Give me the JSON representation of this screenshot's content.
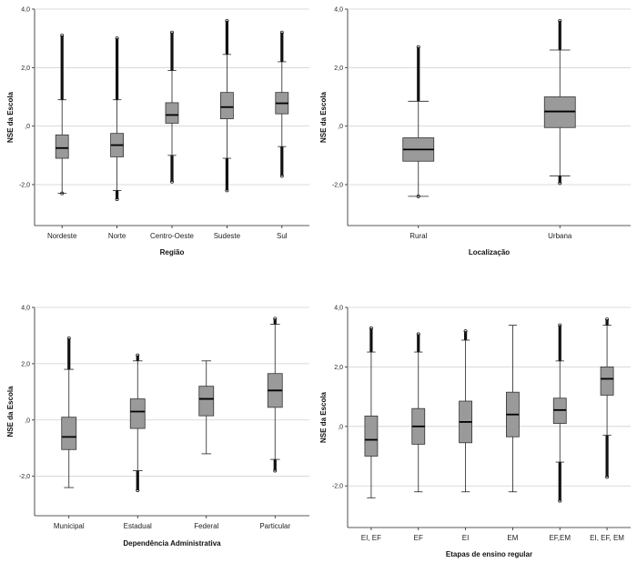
{
  "chart_data": [
    {
      "type": "boxplot",
      "xlabel": "Região",
      "ylabel": "NSE da Escola",
      "ylim": [
        -3.4,
        4.0
      ],
      "yticks": [
        -2.0,
        0.0,
        2.0,
        4.0
      ],
      "ytick_labels": [
        "-2,0",
        ",0",
        "2,0",
        "4,0"
      ],
      "grid": true,
      "categories": [
        "Nordeste",
        "Norte",
        "Centro-Oeste",
        "Sudeste",
        "Sul"
      ],
      "boxes": [
        {
          "min": -2.3,
          "q1": -1.1,
          "median": -0.75,
          "q3": -0.3,
          "max": 0.9
        },
        {
          "min": -2.2,
          "q1": -1.05,
          "median": -0.65,
          "q3": -0.25,
          "max": 0.9
        },
        {
          "min": -1.0,
          "q1": 0.1,
          "median": 0.38,
          "q3": 0.8,
          "max": 1.9
        },
        {
          "min": -1.1,
          "q1": 0.25,
          "median": 0.65,
          "q3": 1.15,
          "max": 2.45
        },
        {
          "min": -0.7,
          "q1": 0.42,
          "median": 0.78,
          "q3": 1.15,
          "max": 2.2
        }
      ],
      "outliers_high": [
        [
          0.9,
          3.1
        ],
        [
          0.9,
          3.0
        ],
        [
          1.9,
          3.2
        ],
        [
          2.45,
          3.6
        ],
        [
          2.2,
          3.2
        ]
      ],
      "outliers_low": [
        [
          -2.3,
          -2.3
        ],
        [
          -2.2,
          -2.5
        ],
        [
          -1.0,
          -1.9
        ],
        [
          -1.1,
          -2.2
        ],
        [
          -0.7,
          -1.7
        ]
      ]
    },
    {
      "type": "boxplot",
      "xlabel": "Localização",
      "ylabel": "NSE da Escola",
      "ylim": [
        -3.4,
        4.0
      ],
      "yticks": [
        -2.0,
        0.0,
        2.0,
        4.0
      ],
      "ytick_labels": [
        "-2,0",
        ",0",
        "2,0",
        "4,0"
      ],
      "grid": true,
      "categories": [
        "Rural",
        "Urbana"
      ],
      "boxes": [
        {
          "min": -2.4,
          "q1": -1.2,
          "median": -0.8,
          "q3": -0.4,
          "max": 0.85
        },
        {
          "min": -1.7,
          "q1": -0.05,
          "median": 0.5,
          "q3": 1.0,
          "max": 2.6
        }
      ],
      "outliers_high": [
        [
          0.85,
          2.7
        ],
        [
          2.6,
          3.6
        ]
      ],
      "outliers_low": [
        [
          -2.4,
          -2.4
        ],
        [
          -1.7,
          -1.95
        ]
      ]
    },
    {
      "type": "boxplot",
      "xlabel": "Dependência Administrativa",
      "ylabel": "NSE da Escola",
      "ylim": [
        -3.4,
        4.0
      ],
      "yticks": [
        -2.0,
        0.0,
        2.0,
        4.0
      ],
      "ytick_labels": [
        "-2,0",
        ",0",
        "2,0",
        "4,0"
      ],
      "grid": true,
      "categories": [
        "Municipal",
        "Estadual",
        "Federal",
        "Particular"
      ],
      "boxes": [
        {
          "min": -2.4,
          "q1": -1.05,
          "median": -0.6,
          "q3": 0.1,
          "max": 1.8
        },
        {
          "min": -1.8,
          "q1": -0.3,
          "median": 0.3,
          "q3": 0.75,
          "max": 2.1
        },
        {
          "min": -1.2,
          "q1": 0.15,
          "median": 0.75,
          "q3": 1.2,
          "max": 2.1
        },
        {
          "min": -1.4,
          "q1": 0.45,
          "median": 1.05,
          "q3": 1.65,
          "max": 3.4
        }
      ],
      "outliers_high": [
        [
          1.8,
          2.9
        ],
        [
          2.1,
          2.3
        ],
        null,
        [
          3.4,
          3.6
        ]
      ],
      "outliers_low": [
        null,
        [
          -1.8,
          -2.5
        ],
        null,
        [
          -1.4,
          -1.8
        ]
      ]
    },
    {
      "type": "boxplot",
      "xlabel": "Etapas de ensino regular",
      "ylabel": "NSE da Escola",
      "ylim": [
        -3.4,
        4.0
      ],
      "yticks": [
        -2.0,
        0.0,
        2.0,
        4.0
      ],
      "ytick_labels": [
        "-2,0",
        ",0",
        "2,0",
        "4,0"
      ],
      "grid": true,
      "categories": [
        "EI, EF",
        "EF",
        "EI",
        "EM",
        "EF,EM",
        "EI, EF, EM"
      ],
      "boxes": [
        {
          "min": -2.4,
          "q1": -1.0,
          "median": -0.45,
          "q3": 0.35,
          "max": 2.5
        },
        {
          "min": -2.2,
          "q1": -0.6,
          "median": 0.0,
          "q3": 0.6,
          "max": 2.5
        },
        {
          "min": -2.2,
          "q1": -0.55,
          "median": 0.15,
          "q3": 0.85,
          "max": 2.9
        },
        {
          "min": -2.2,
          "q1": -0.35,
          "median": 0.4,
          "q3": 1.15,
          "max": 3.4
        },
        {
          "min": -1.2,
          "q1": 0.1,
          "median": 0.55,
          "q3": 0.95,
          "max": 2.2
        },
        {
          "min": -0.3,
          "q1": 1.05,
          "median": 1.6,
          "q3": 2.0,
          "max": 3.4
        }
      ],
      "outliers_high": [
        [
          2.5,
          3.3
        ],
        [
          2.5,
          3.1
        ],
        [
          2.9,
          3.2
        ],
        null,
        [
          2.2,
          3.4
        ],
        [
          3.4,
          3.6
        ]
      ],
      "outliers_low": [
        null,
        null,
        null,
        null,
        [
          -1.2,
          -2.5
        ],
        [
          -0.3,
          -1.7
        ]
      ]
    }
  ]
}
